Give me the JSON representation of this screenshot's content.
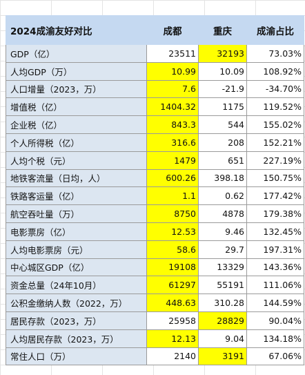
{
  "table": {
    "header": [
      "2024成渝友好对比",
      "成都",
      "重庆",
      "成渝占比"
    ],
    "highlight_color": "#ffff00",
    "rows": [
      {
        "cells": [
          "GDP（亿）",
          "23511",
          "32193",
          "73.03%"
        ],
        "highlight": 2
      },
      {
        "cells": [
          "人均GDP（万）",
          "10.99",
          "10.09",
          "108.92%"
        ],
        "highlight": 1
      },
      {
        "cells": [
          "人口增量（2023，万）",
          "7.6",
          "-21.9",
          "-34.70%"
        ],
        "highlight": 1
      },
      {
        "cells": [
          "增值税（亿）",
          "1404.32",
          "1175",
          "119.52%"
        ],
        "highlight": 1
      },
      {
        "cells": [
          "企业税（亿）",
          "843.3",
          "544",
          "155.02%"
        ],
        "highlight": 1
      },
      {
        "cells": [
          "个人所得税（亿）",
          "316.6",
          "208",
          "152.21%"
        ],
        "highlight": 1
      },
      {
        "cells": [
          "人均个税（元）",
          "1479",
          "651",
          "227.19%"
        ],
        "highlight": 1
      },
      {
        "cells": [
          "地铁客流量（日均，人）",
          "600.26",
          "398.18",
          "150.75%"
        ],
        "highlight": 1
      },
      {
        "cells": [
          "铁路客运量（亿）",
          "1.1",
          "0.62",
          "177.42%"
        ],
        "highlight": 1
      },
      {
        "cells": [
          "航空吞吐量（万）",
          "8750",
          "4878",
          "179.38%"
        ],
        "highlight": 1
      },
      {
        "cells": [
          "电影票房（亿）",
          "12.53",
          "9.46",
          "132.45%"
        ],
        "highlight": 1
      },
      {
        "cells": [
          "人均电影票房（元）",
          "58.6",
          "29.7",
          "197.31%"
        ],
        "highlight": 1
      },
      {
        "cells": [
          "中心城区GDP（亿）",
          "19108",
          "13329",
          "143.36%"
        ],
        "highlight": 1
      },
      {
        "cells": [
          "资金总量（24年10月）",
          "61297",
          "55191",
          "111.06%"
        ],
        "highlight": 1
      },
      {
        "cells": [
          "公积金缴纳人数（2022，万）",
          "448.63",
          "310.28",
          "144.59%"
        ],
        "highlight": 1
      },
      {
        "cells": [
          "居民存款（2023，万）",
          "25958",
          "28829",
          "90.04%"
        ],
        "highlight": 2
      },
      {
        "cells": [
          "人均居民存款（2023，万）",
          "12.13",
          "9.04",
          "134.18%"
        ],
        "highlight": 1
      },
      {
        "cells": [
          "常住人口（万）",
          "2140",
          "3191",
          "67.06%"
        ],
        "highlight": 2
      }
    ]
  }
}
